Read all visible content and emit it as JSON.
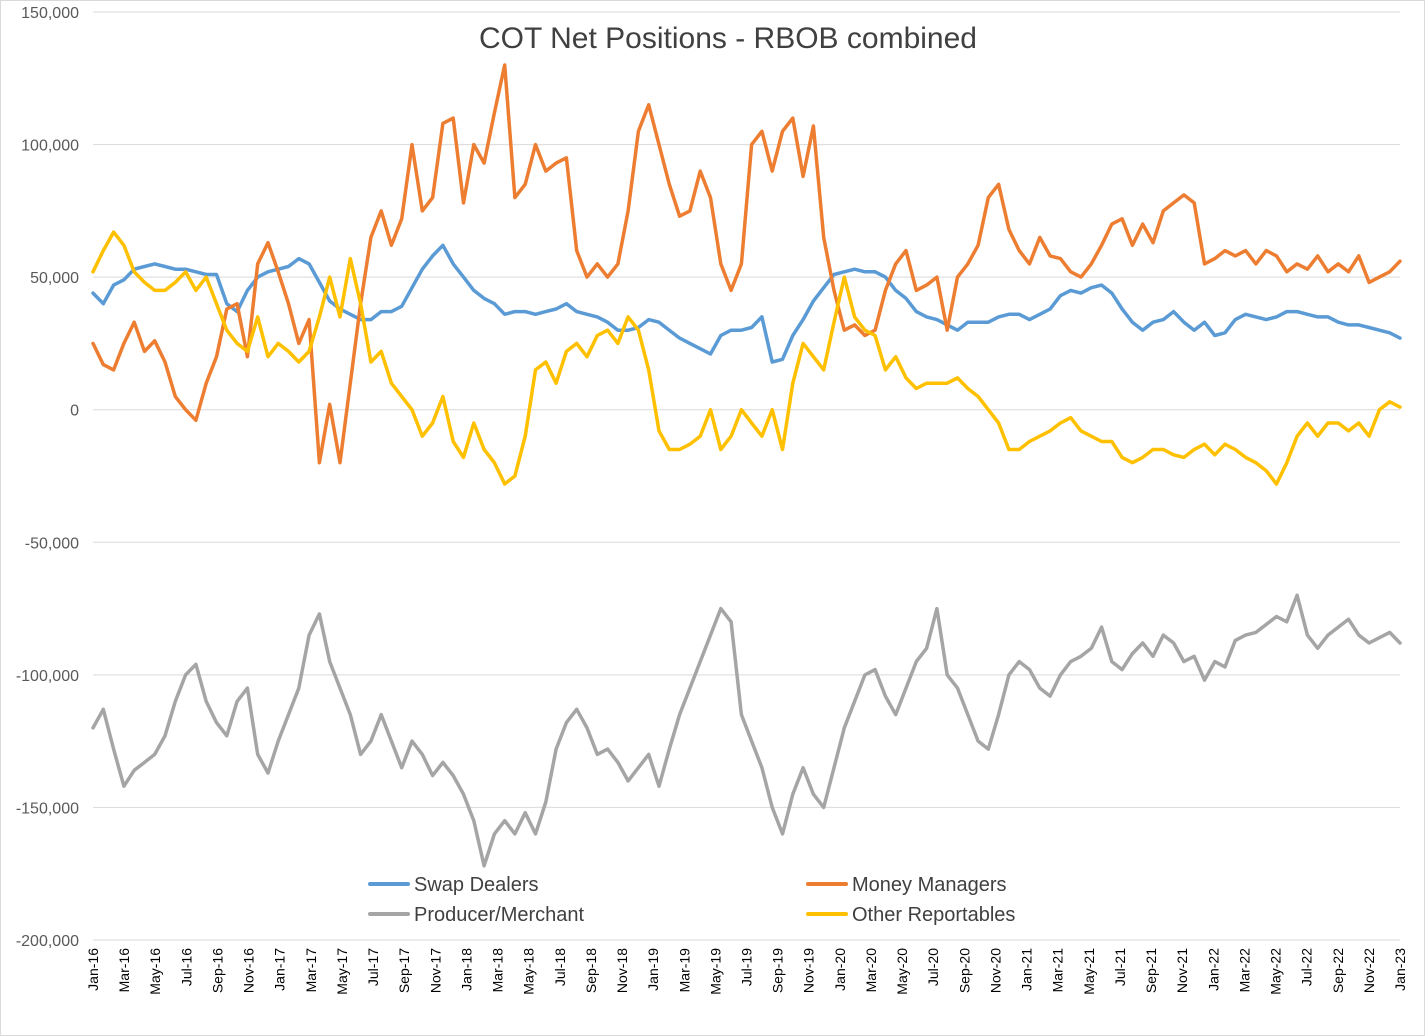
{
  "chart_data": {
    "type": "line",
    "title": "COT Net Positions - RBOB combined",
    "xlabel": "",
    "ylabel": "",
    "ylim": [
      -200000,
      150000
    ],
    "grid": true,
    "legend_position": "bottom",
    "y_ticks": [
      {
        "value": 150000,
        "label": "150,000"
      },
      {
        "value": 100000,
        "label": "100,000"
      },
      {
        "value": 50000,
        "label": "50,000"
      },
      {
        "value": 0,
        "label": "0"
      },
      {
        "value": -50000,
        "label": "-50,000"
      },
      {
        "value": -100000,
        "label": "-100,000"
      },
      {
        "value": -150000,
        "label": "-150,000"
      },
      {
        "value": -200000,
        "label": "-200,000"
      }
    ],
    "x_ticks": [
      "Jan-16",
      "Mar-16",
      "May-16",
      "Jul-16",
      "Sep-16",
      "Nov-16",
      "Jan-17",
      "Mar-17",
      "May-17",
      "Jul-17",
      "Sep-17",
      "Nov-17",
      "Jan-18",
      "Mar-18",
      "May-18",
      "Jul-18",
      "Sep-18",
      "Nov-18",
      "Jan-19",
      "Mar-19",
      "May-19",
      "Jul-19",
      "Sep-19",
      "Nov-19",
      "Jan-20",
      "Mar-20",
      "May-20",
      "Jul-20",
      "Sep-20",
      "Nov-20",
      "Jan-21",
      "Mar-21",
      "May-21",
      "Jul-21",
      "Sep-21",
      "Nov-21",
      "Jan-22",
      "Mar-22",
      "May-22",
      "Jul-22",
      "Sep-22",
      "Nov-22",
      "Jan-23"
    ],
    "series": [
      {
        "name": "Swap Dealers",
        "color": "#5b9bd5",
        "values": [
          44000,
          40000,
          47000,
          49000,
          53000,
          54000,
          55000,
          54000,
          53000,
          53000,
          52000,
          51000,
          51000,
          40000,
          37000,
          45000,
          50000,
          52000,
          53000,
          54000,
          57000,
          55000,
          48000,
          41000,
          38000,
          36000,
          34000,
          34000,
          37000,
          37000,
          39000,
          46000,
          53000,
          58000,
          62000,
          55000,
          50000,
          45000,
          42000,
          40000,
          36000,
          37000,
          37000,
          36000,
          37000,
          38000,
          40000,
          37000,
          36000,
          35000,
          33000,
          30000,
          30000,
          31000,
          34000,
          33000,
          30000,
          27000,
          25000,
          23000,
          21000,
          28000,
          30000,
          30000,
          31000,
          35000,
          18000,
          19000,
          28000,
          34000,
          41000,
          46000,
          51000,
          52000,
          53000,
          52000,
          52000,
          50000,
          45000,
          42000,
          37000,
          35000,
          34000,
          32000,
          30000,
          33000,
          33000,
          33000,
          35000,
          36000,
          36000,
          34000,
          36000,
          38000,
          43000,
          45000,
          44000,
          46000,
          47000,
          44000,
          38000,
          33000,
          30000,
          33000,
          34000,
          37000,
          33000,
          30000,
          33000,
          28000,
          29000,
          34000,
          36000,
          35000,
          34000,
          35000,
          37000,
          37000,
          36000,
          35000,
          35000,
          33000,
          32000,
          32000,
          31000,
          30000,
          29000,
          27000
        ]
      },
      {
        "name": "Money Managers",
        "color": "#ed7d31",
        "values": [
          25000,
          17000,
          15000,
          25000,
          33000,
          22000,
          26000,
          18000,
          5000,
          0,
          -4000,
          10000,
          20000,
          38000,
          40000,
          20000,
          55000,
          63000,
          52000,
          40000,
          25000,
          34000,
          -20000,
          2000,
          -20000,
          10000,
          40000,
          65000,
          75000,
          62000,
          72000,
          100000,
          75000,
          80000,
          108000,
          110000,
          78000,
          100000,
          93000,
          112000,
          130000,
          80000,
          85000,
          100000,
          90000,
          93000,
          95000,
          60000,
          50000,
          55000,
          50000,
          55000,
          75000,
          105000,
          115000,
          100000,
          85000,
          73000,
          75000,
          90000,
          80000,
          55000,
          45000,
          55000,
          100000,
          105000,
          90000,
          105000,
          110000,
          88000,
          107000,
          65000,
          45000,
          30000,
          32000,
          28000,
          30000,
          45000,
          55000,
          60000,
          45000,
          47000,
          50000,
          30000,
          50000,
          55000,
          62000,
          80000,
          85000,
          68000,
          60000,
          55000,
          65000,
          58000,
          57000,
          52000,
          50000,
          55000,
          62000,
          70000,
          72000,
          62000,
          70000,
          63000,
          75000,
          78000,
          81000,
          78000,
          55000,
          57000,
          60000,
          58000,
          60000,
          55000,
          60000,
          58000,
          52000,
          55000,
          53000,
          58000,
          52000,
          55000,
          52000,
          58000,
          48000,
          50000,
          52000,
          56000
        ]
      },
      {
        "name": "Producer/Merchant",
        "color": "#a5a5a5",
        "values": [
          -120000,
          -113000,
          -128000,
          -142000,
          -136000,
          -133000,
          -130000,
          -123000,
          -110000,
          -100000,
          -96000,
          -110000,
          -118000,
          -123000,
          -110000,
          -105000,
          -130000,
          -137000,
          -125000,
          -115000,
          -105000,
          -85000,
          -77000,
          -95000,
          -105000,
          -115000,
          -130000,
          -125000,
          -115000,
          -125000,
          -135000,
          -125000,
          -130000,
          -138000,
          -133000,
          -138000,
          -145000,
          -155000,
          -172000,
          -160000,
          -155000,
          -160000,
          -152000,
          -160000,
          -148000,
          -128000,
          -118000,
          -113000,
          -120000,
          -130000,
          -128000,
          -133000,
          -140000,
          -135000,
          -130000,
          -142000,
          -128000,
          -115000,
          -105000,
          -95000,
          -85000,
          -75000,
          -80000,
          -115000,
          -125000,
          -135000,
          -150000,
          -160000,
          -145000,
          -135000,
          -145000,
          -150000,
          -135000,
          -120000,
          -110000,
          -100000,
          -98000,
          -108000,
          -115000,
          -105000,
          -95000,
          -90000,
          -75000,
          -100000,
          -105000,
          -115000,
          -125000,
          -128000,
          -115000,
          -100000,
          -95000,
          -98000,
          -105000,
          -108000,
          -100000,
          -95000,
          -93000,
          -90000,
          -82000,
          -95000,
          -98000,
          -92000,
          -88000,
          -93000,
          -85000,
          -88000,
          -95000,
          -93000,
          -102000,
          -95000,
          -97000,
          -87000,
          -85000,
          -84000,
          -81000,
          -78000,
          -80000,
          -70000,
          -85000,
          -90000,
          -85000,
          -82000,
          -79000,
          -85000,
          -88000,
          -86000,
          -84000,
          -88000
        ]
      },
      {
        "name": "Other Reportables",
        "color": "#ffc000",
        "values": [
          52000,
          60000,
          67000,
          62000,
          52000,
          48000,
          45000,
          45000,
          48000,
          52000,
          45000,
          50000,
          40000,
          30000,
          25000,
          22000,
          35000,
          20000,
          25000,
          22000,
          18000,
          22000,
          35000,
          50000,
          35000,
          57000,
          40000,
          18000,
          22000,
          10000,
          5000,
          0,
          -10000,
          -5000,
          5000,
          -12000,
          -18000,
          -5000,
          -15000,
          -20000,
          -28000,
          -25000,
          -10000,
          15000,
          18000,
          10000,
          22000,
          25000,
          20000,
          28000,
          30000,
          25000,
          35000,
          30000,
          15000,
          -8000,
          -15000,
          -15000,
          -13000,
          -10000,
          0,
          -15000,
          -10000,
          0,
          -5000,
          -10000,
          0,
          -15000,
          10000,
          25000,
          20000,
          15000,
          33000,
          50000,
          35000,
          30000,
          28000,
          15000,
          20000,
          12000,
          8000,
          10000,
          10000,
          10000,
          12000,
          8000,
          5000,
          0,
          -5000,
          -15000,
          -15000,
          -12000,
          -10000,
          -8000,
          -5000,
          -3000,
          -8000,
          -10000,
          -12000,
          -12000,
          -18000,
          -20000,
          -18000,
          -15000,
          -15000,
          -17000,
          -18000,
          -15000,
          -13000,
          -17000,
          -13000,
          -15000,
          -18000,
          -20000,
          -23000,
          -28000,
          -20000,
          -10000,
          -5000,
          -10000,
          -5000,
          -5000,
          -8000,
          -5000,
          -10000,
          0,
          3000,
          1000
        ]
      }
    ]
  }
}
